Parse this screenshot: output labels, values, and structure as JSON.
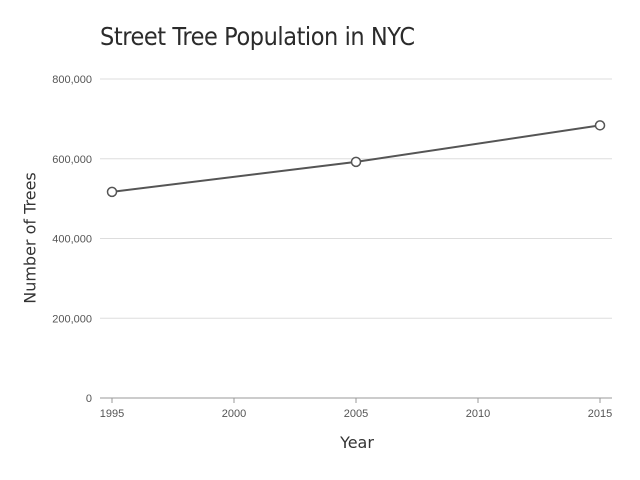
{
  "chart_data": {
    "type": "line",
    "title": "Street Tree Population in NYC",
    "xlabel": "Year",
    "ylabel": "Number of Trees",
    "x": [
      1995,
      2005,
      2015
    ],
    "series": [
      {
        "values": [
          516989,
          592130,
          683788
        ]
      }
    ],
    "xticks": [
      1995,
      2000,
      2005,
      2010,
      2015
    ],
    "xtick_labels": [
      "1995",
      "2000",
      "2005",
      "2010",
      "2015"
    ],
    "yticks": [
      0,
      200000,
      400000,
      600000,
      800000
    ],
    "ytick_labels": [
      "0",
      "200,000",
      "400,000",
      "600,000",
      "800,000"
    ],
    "xlim": [
      1995,
      2015
    ],
    "ylim": [
      0,
      800000
    ],
    "grid": "horizontal",
    "colors": {
      "line": "#555555",
      "marker_fill": "#ffffff",
      "grid": "#dddddd",
      "axis": "#999999"
    }
  }
}
